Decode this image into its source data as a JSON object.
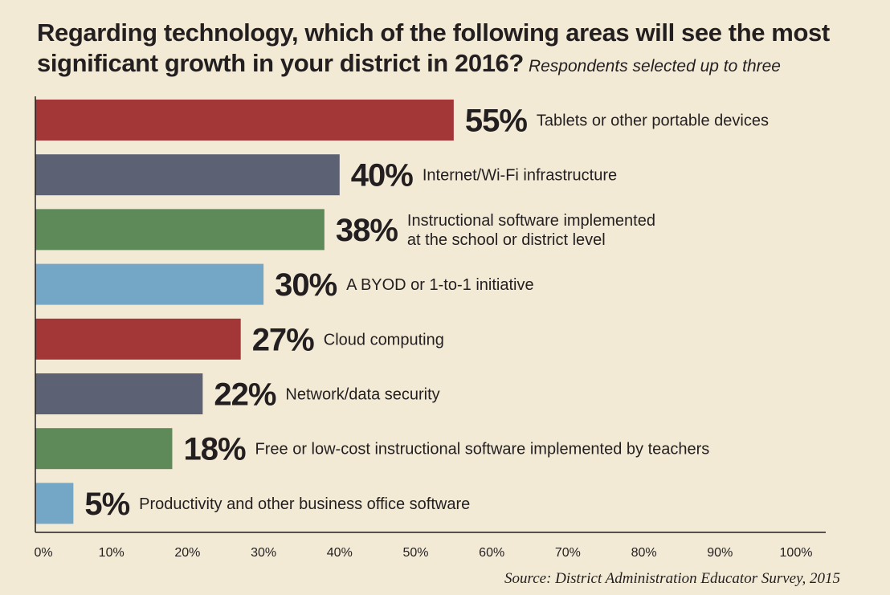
{
  "chart_data": {
    "type": "bar",
    "orientation": "horizontal",
    "title_line1": "Regarding technology, which of the following areas will see the most",
    "title_line2": "significant growth in your district in 2016?",
    "subtitle": "Respondents selected up to three",
    "categories": [
      [
        "Tablets or other portable devices"
      ],
      [
        "Internet/Wi-Fi infrastructure"
      ],
      [
        "Instructional software implemented",
        "at the school or district level"
      ],
      [
        "A BYOD or 1-to-1 initiative"
      ],
      [
        "Cloud computing"
      ],
      [
        "Network/data security"
      ],
      [
        "Free or low-cost instructional software implemented by teachers"
      ],
      [
        "Productivity and other business office software"
      ]
    ],
    "values": [
      55,
      40,
      38,
      30,
      27,
      22,
      18,
      5
    ],
    "value_labels": [
      "55%",
      "40%",
      "38%",
      "30%",
      "27%",
      "22%",
      "18%",
      "5%"
    ],
    "colors": [
      "#a33636",
      "#5c6274",
      "#5d8a58",
      "#74a6c6",
      "#a33636",
      "#5c6274",
      "#5d8a58",
      "#74a6c6"
    ],
    "xlim": [
      0,
      100
    ],
    "x_ticks": [
      "0%",
      "10%",
      "20%",
      "30%",
      "40%",
      "50%",
      "60%",
      "70%",
      "80%",
      "90%",
      "100%"
    ],
    "grid": false,
    "source": "Source: District Administration Educator Survey, 2015"
  }
}
